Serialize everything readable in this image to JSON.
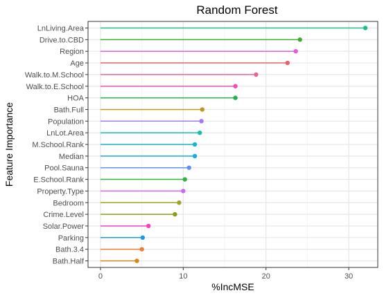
{
  "chart_data": {
    "type": "lollipop",
    "title": "Random Forest",
    "xlabel": "%IncMSE",
    "ylabel": "Feature Importance",
    "xlim": [
      -1.5,
      33.5
    ],
    "xticks": [
      0,
      10,
      20,
      30
    ],
    "grid": true,
    "legend": "none",
    "categories": [
      "LnLiving.Area",
      "Drive.to.CBD",
      "Region",
      "Age",
      "Walk.to.M.School",
      "Walk.to.E.School",
      "HOA",
      "Bath.Full",
      "Population",
      "LnLot.Area",
      "M.School.Rank",
      "Median",
      "Pool.Sauna",
      "E.School.Rank",
      "Property.Type",
      "Bedroom",
      "Crime.Level",
      "Solar.Power",
      "Parking",
      "Bath.3.4",
      "Bath.Half"
    ],
    "values": [
      32.0,
      24.1,
      23.6,
      22.6,
      18.8,
      16.3,
      16.3,
      12.3,
      12.2,
      12.0,
      11.4,
      11.4,
      10.7,
      10.2,
      10.0,
      9.5,
      9.0,
      5.8,
      5.1,
      5.0,
      4.4
    ],
    "colors": [
      "#1bbc8c",
      "#3dae2b",
      "#e25ee0",
      "#e6626b",
      "#f2608e",
      "#ee4fb5",
      "#22b14c",
      "#c09821",
      "#a378f2",
      "#16bdb0",
      "#17b4cc",
      "#19a9e6",
      "#5f90f2",
      "#34b345",
      "#c869ee",
      "#a1a126",
      "#8b9c1c",
      "#f83ec1",
      "#199ae7",
      "#ef7e34",
      "#d38a14"
    ]
  }
}
